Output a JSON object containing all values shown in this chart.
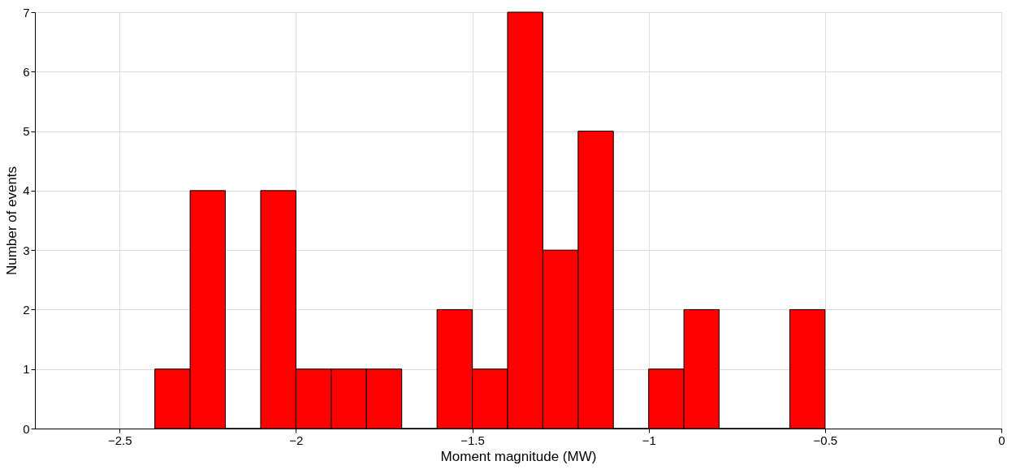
{
  "chart_data": {
    "type": "histogram",
    "xlabel": "Moment magnitude (MW)",
    "ylabel": "Number of events",
    "bins": [
      -2.4,
      -2.3,
      -2.2,
      -2.1,
      -2.0,
      -1.9,
      -1.8,
      -1.7,
      -1.6,
      -1.5,
      -1.4,
      -1.3,
      -1.2,
      -1.1,
      -1.0,
      -0.9,
      -0.8,
      -0.7,
      -0.6,
      -0.5
    ],
    "values": [
      1,
      4,
      0,
      4,
      1,
      1,
      1,
      0,
      2,
      1,
      7,
      3,
      5,
      0,
      1,
      2,
      0,
      0,
      2
    ],
    "color": "#ff0000",
    "xlim": [
      -2.74,
      0
    ],
    "xticks": [
      -2.5,
      -2,
      -1.5,
      -1,
      -0.5,
      0
    ],
    "ylim": [
      0,
      7
    ],
    "yticks": [
      0,
      1,
      2,
      3,
      4,
      5,
      6,
      7
    ],
    "grid": true
  }
}
